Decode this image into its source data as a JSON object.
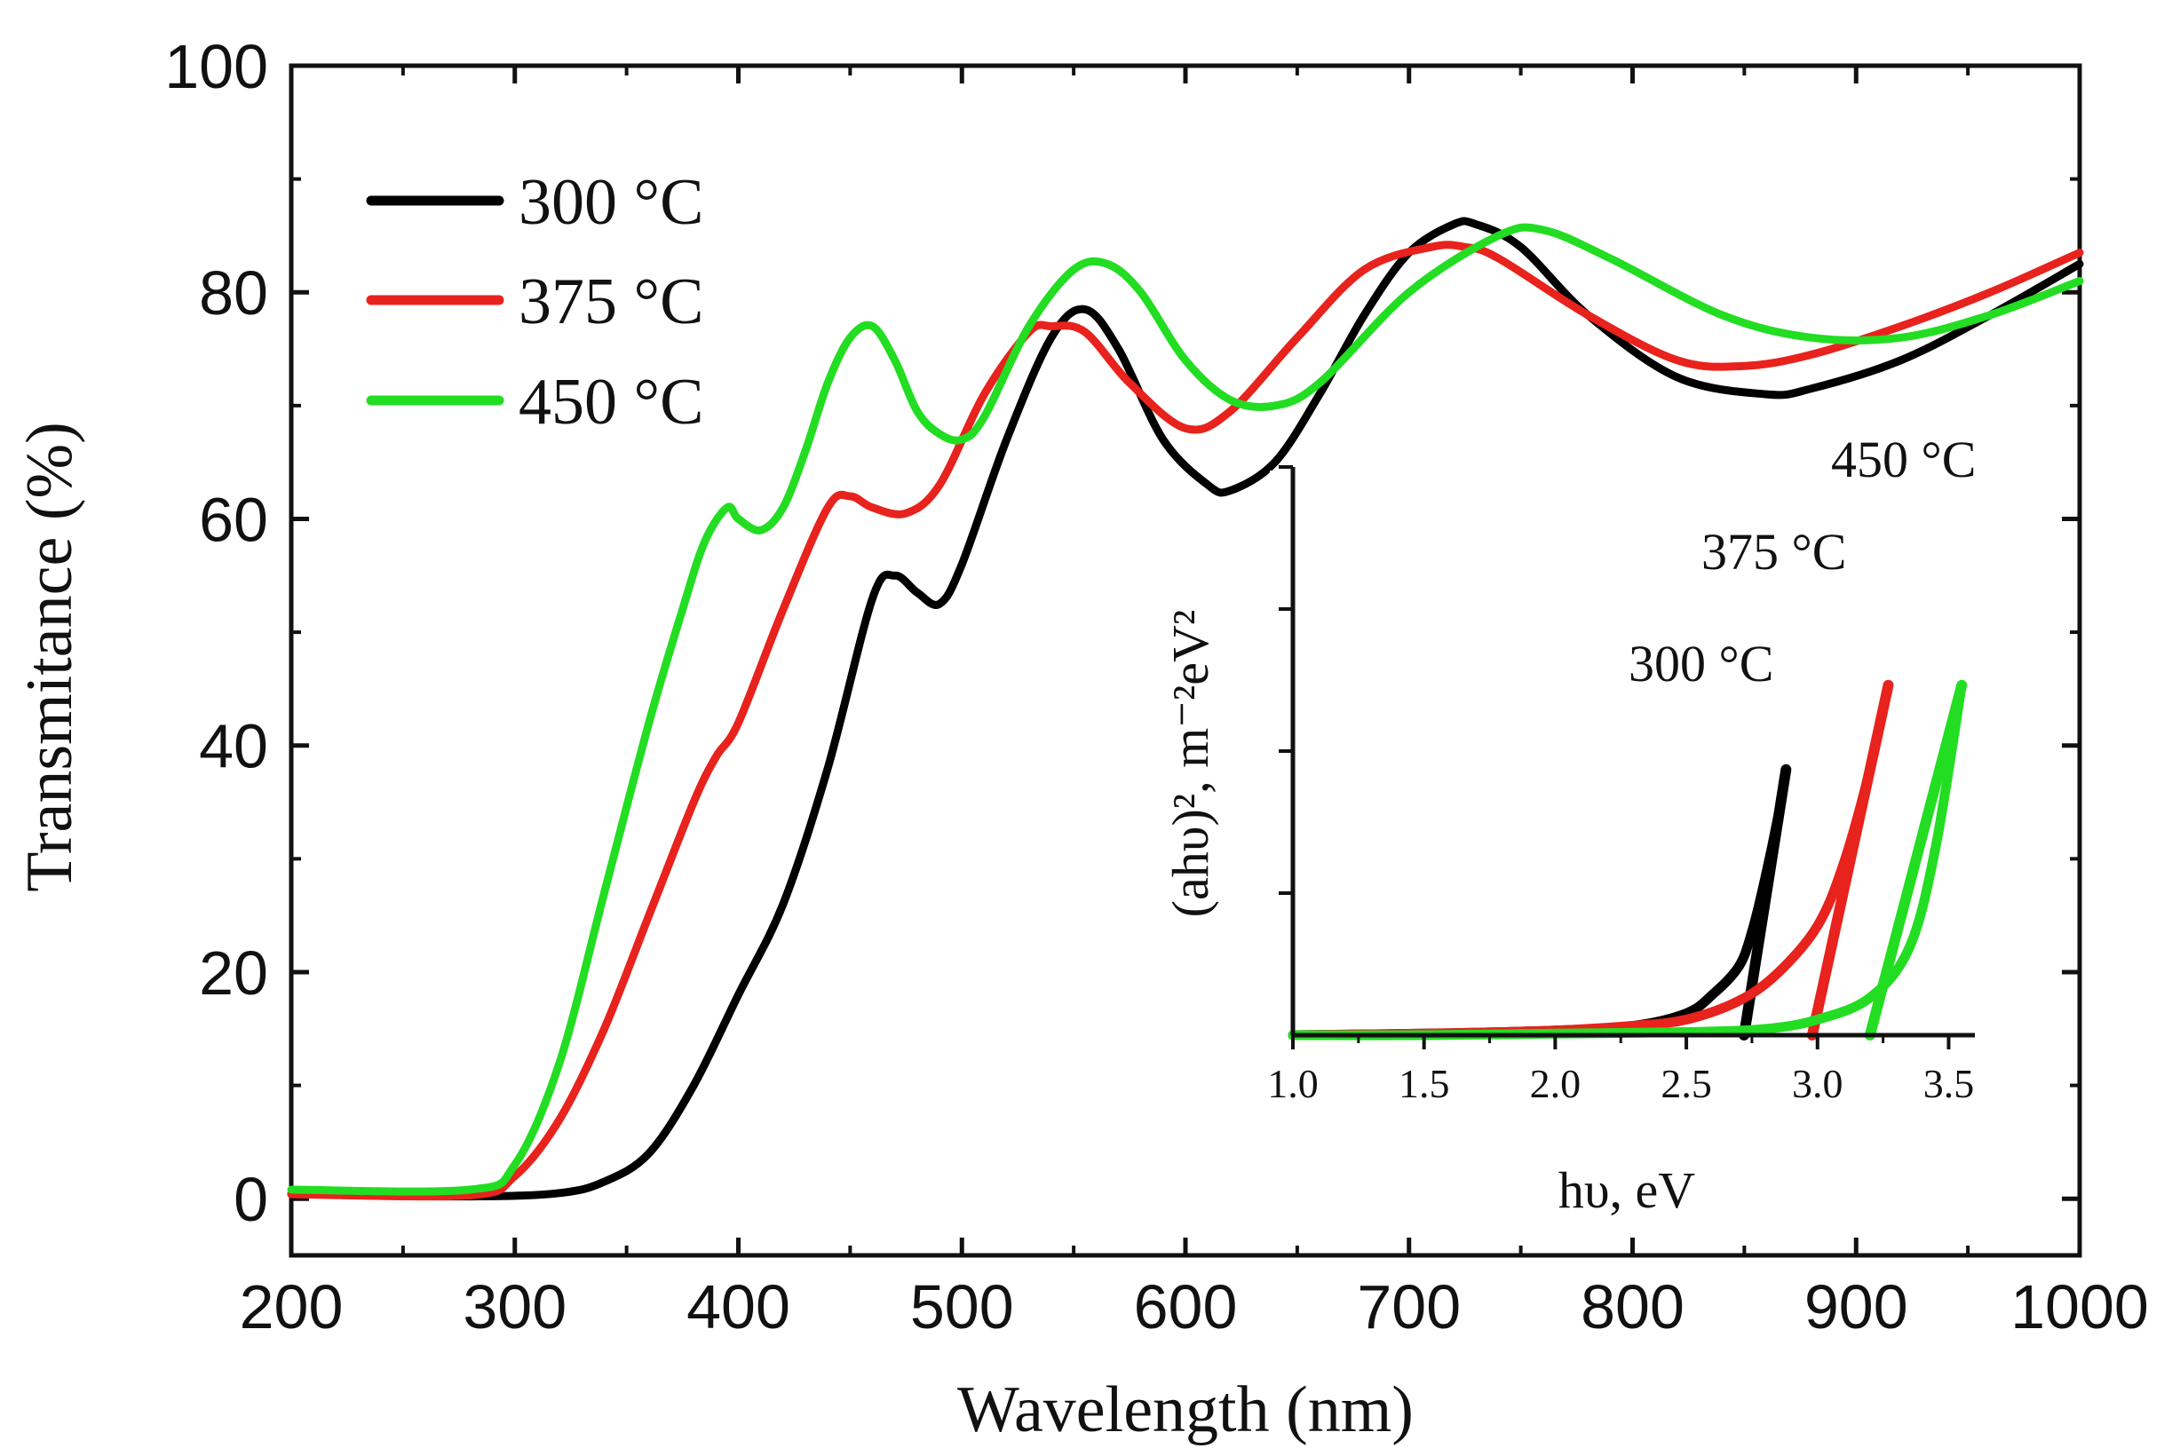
{
  "chart_data": [
    {
      "type": "line",
      "xlabel": "Wavelength (nm)",
      "ylabel": "Transmitance (%)",
      "xlim": [
        200,
        1000
      ],
      "ylim": [
        -5,
        100
      ],
      "xticks": [
        "200",
        "300",
        "400",
        "500",
        "600",
        "700",
        "800",
        "900",
        "1000"
      ],
      "yticks": [
        "0",
        "20",
        "40",
        "60",
        "80",
        "100"
      ],
      "legend_position": "top-left",
      "series": [
        {
          "name": "300 °C",
          "color": "#000000",
          "x": [
            200,
            280,
            320,
            340,
            360,
            380,
            400,
            420,
            440,
            460,
            470,
            480,
            490,
            500,
            520,
            540,
            555,
            570,
            590,
            610,
            620,
            640,
            660,
            680,
            700,
            720,
            730,
            750,
            780,
            820,
            860,
            880,
            920,
            960,
            1000
          ],
          "y": [
            0.4,
            0.2,
            0.5,
            1.5,
            4,
            10,
            18,
            26,
            38,
            53,
            55,
            53.5,
            52.5,
            56,
            67,
            76,
            78.5,
            75,
            67,
            63,
            62.5,
            65,
            71,
            78,
            83.5,
            86,
            86,
            84,
            78,
            72.5,
            71,
            71.5,
            74,
            78,
            82.5
          ]
        },
        {
          "name": "375 °C",
          "color": "#e8221c",
          "x": [
            200,
            280,
            300,
            320,
            340,
            360,
            380,
            390,
            400,
            420,
            440,
            450,
            460,
            475,
            490,
            510,
            530,
            540,
            555,
            575,
            600,
            620,
            650,
            680,
            710,
            725,
            740,
            780,
            820,
            850,
            880,
            920,
            960,
            1000
          ],
          "y": [
            0.4,
            0.3,
            2,
            7,
            15,
            25,
            35,
            39,
            42,
            52,
            61,
            62,
            61,
            60.5,
            63,
            71,
            76.5,
            77,
            76.5,
            72,
            68,
            69.5,
            76,
            82,
            84,
            84,
            83,
            78,
            74,
            73.5,
            74.5,
            77,
            80,
            83.5
          ]
        },
        {
          "name": "450 °C",
          "color": "#22dd22",
          "x": [
            200,
            280,
            300,
            320,
            340,
            360,
            375,
            385,
            395,
            400,
            410,
            420,
            430,
            440,
            450,
            460,
            470,
            480,
            490,
            500,
            510,
            530,
            550,
            565,
            580,
            600,
            620,
            640,
            660,
            700,
            740,
            760,
            790,
            840,
            880,
            920,
            960,
            1000
          ],
          "y": [
            0.8,
            0.8,
            3,
            12,
            27,
            42,
            52,
            58,
            61,
            60,
            59,
            61,
            66,
            72,
            76,
            77,
            74,
            69.5,
            67.5,
            67,
            69,
            77,
            82,
            82.5,
            80,
            74,
            70.5,
            70,
            72,
            80,
            85,
            85.5,
            83,
            78,
            76,
            76,
            78,
            81
          ]
        }
      ]
    },
    {
      "type": "line",
      "subtitle": "inset",
      "xlabel": "hυ, eV",
      "ylabel": "(ahυ)², m⁻²eV²",
      "xlim": [
        1.0,
        3.6
      ],
      "xticks": [
        "1.0",
        "1.5",
        "2.0",
        "2.5",
        "3.0",
        "3.5"
      ],
      "ylim": [
        0,
        1
      ],
      "annotations": [
        "300 °C",
        "375 °C",
        "450 °C"
      ],
      "series": [
        {
          "name": "300 °C",
          "color": "#000000",
          "x": [
            1.0,
            1.5,
            2.0,
            2.3,
            2.5,
            2.6,
            2.7,
            2.75,
            2.8,
            2.85,
            2.88
          ],
          "y": [
            0.0,
            0.005,
            0.015,
            0.03,
            0.07,
            0.13,
            0.22,
            0.33,
            0.5,
            0.7,
            0.85
          ]
        },
        {
          "name": "300 °C fit",
          "color": "#000000",
          "x": [
            2.72,
            2.88
          ],
          "y": [
            0.0,
            0.85
          ]
        },
        {
          "name": "375 °C",
          "color": "#e8221c",
          "x": [
            1.0,
            1.5,
            2.0,
            2.3,
            2.5,
            2.7,
            2.85,
            3.0,
            3.1,
            3.2,
            3.27
          ],
          "y": [
            0.0,
            0.005,
            0.015,
            0.03,
            0.05,
            0.11,
            0.2,
            0.35,
            0.55,
            0.85,
            1.12
          ]
        },
        {
          "name": "375 °C fit",
          "color": "#e8221c",
          "x": [
            2.98,
            3.27
          ],
          "y": [
            0.0,
            1.12
          ]
        },
        {
          "name": "450 °C",
          "color": "#22dd22",
          "x": [
            1.0,
            1.5,
            2.0,
            2.5,
            2.8,
            3.0,
            3.2,
            3.35,
            3.45,
            3.55
          ],
          "y": [
            0.0,
            0.0,
            0.005,
            0.01,
            0.02,
            0.05,
            0.12,
            0.28,
            0.6,
            1.12
          ]
        },
        {
          "name": "450 °C fit",
          "color": "#22dd22",
          "x": [
            3.2,
            3.55
          ],
          "y": [
            0.0,
            1.12
          ]
        }
      ]
    }
  ]
}
